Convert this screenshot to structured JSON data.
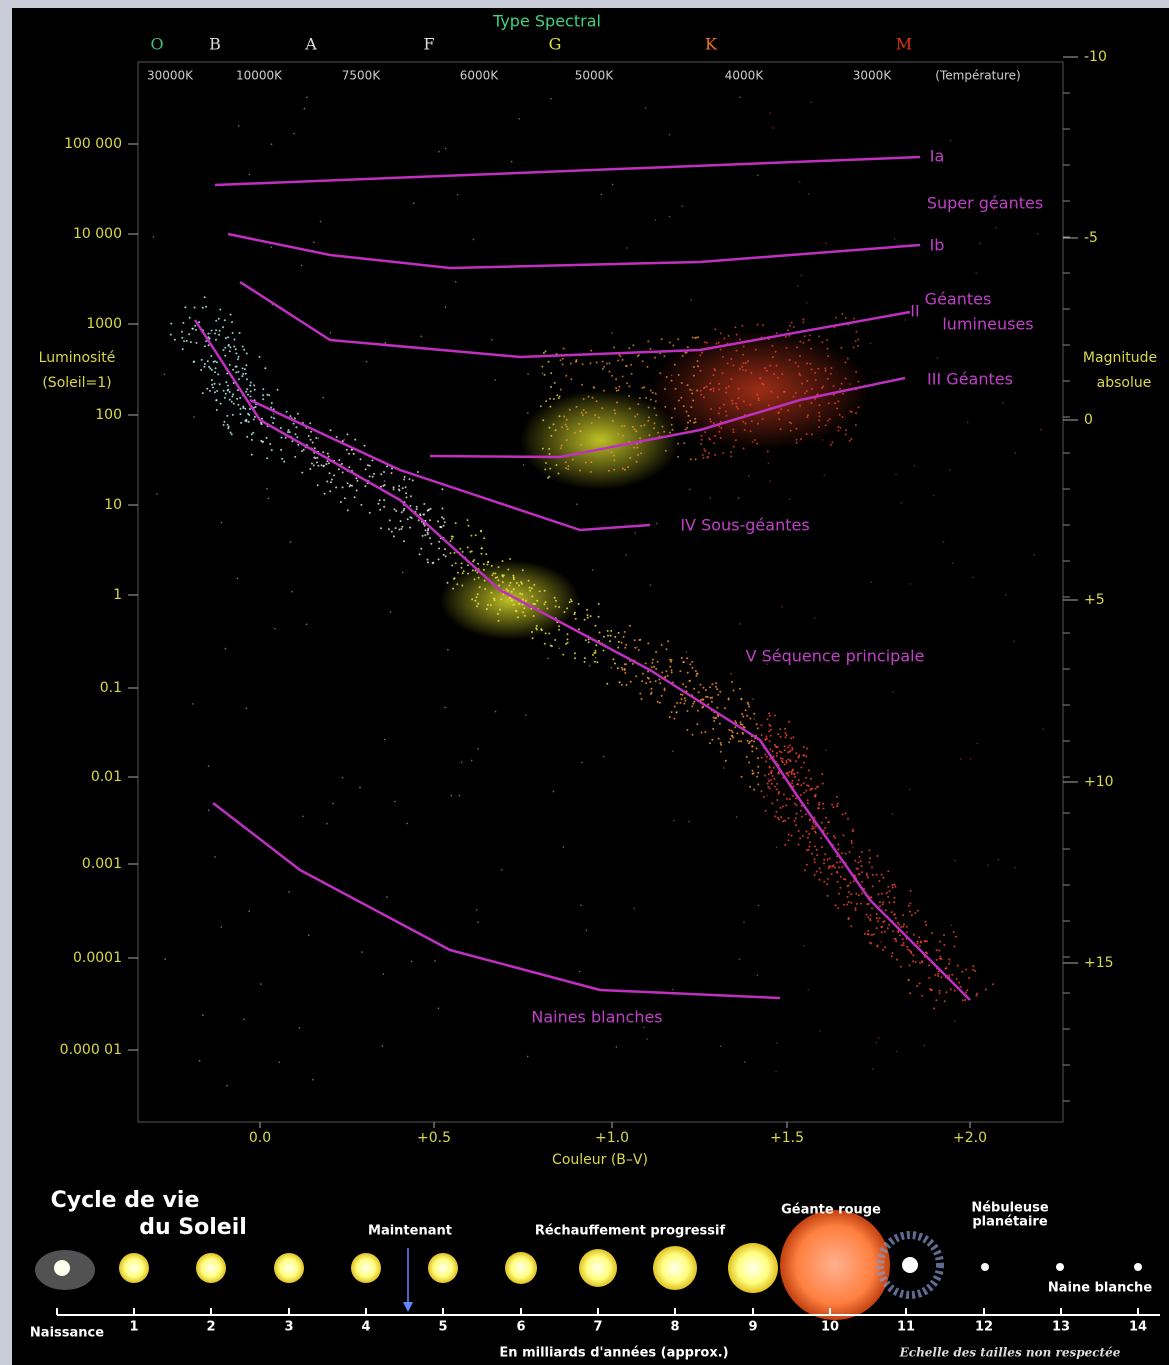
{
  "header": {
    "title": "Type Spectral",
    "spectral_types": [
      "O",
      "B",
      "A",
      "F",
      "G",
      "K",
      "M"
    ],
    "temperatures": [
      "30000K",
      "10000K",
      "7500K",
      "6000K",
      "5000K",
      "4000K",
      "3000K",
      "(Température)"
    ]
  },
  "left_axis": {
    "label": [
      "Luminosité",
      "(Soleil=1)"
    ],
    "ticks": [
      "100 000",
      "10 000",
      "1000",
      "100",
      "10",
      "1",
      "0.1",
      "0.01",
      "0.001",
      "0.0001",
      "0.000 01"
    ]
  },
  "right_axis": {
    "label": [
      "Magnitude",
      "absolue"
    ],
    "ticks": [
      "-10",
      "-5",
      "0",
      "+5",
      "+10",
      "+15"
    ]
  },
  "bottom_axis": {
    "label": "Couleur (B–V)",
    "ticks": [
      "0.0",
      "+0.5",
      "+1.0",
      "+1.5",
      "+2.0"
    ]
  },
  "curves": [
    {
      "label": "Ia"
    },
    {
      "label": "Super géantes"
    },
    {
      "label": "Ib"
    },
    {
      "label": "II"
    },
    {
      "label": "Géantes"
    },
    {
      "label": "lumineuses"
    },
    {
      "label": "III   Géantes"
    },
    {
      "label": "IV Sous-géantes"
    },
    {
      "label": "V Séquence principale"
    },
    {
      "label": "Naines blanches"
    }
  ],
  "life_cycle": {
    "title": [
      "Cycle de vie",
      "du Soleil"
    ],
    "labels": [
      "Maintenant",
      "Réchauffement progressif",
      "Géante rouge",
      "Nébuleuse",
      "planétaire",
      "Naine blanche"
    ],
    "ticks": [
      "1",
      "2",
      "3",
      "4",
      "5",
      "6",
      "7",
      "8",
      "9",
      "10",
      "11",
      "12",
      "13",
      "14"
    ],
    "start": "Naissance",
    "axis_label": "En milliards d'années (approx.)",
    "note": "Echelle des tailles non respectée"
  }
}
